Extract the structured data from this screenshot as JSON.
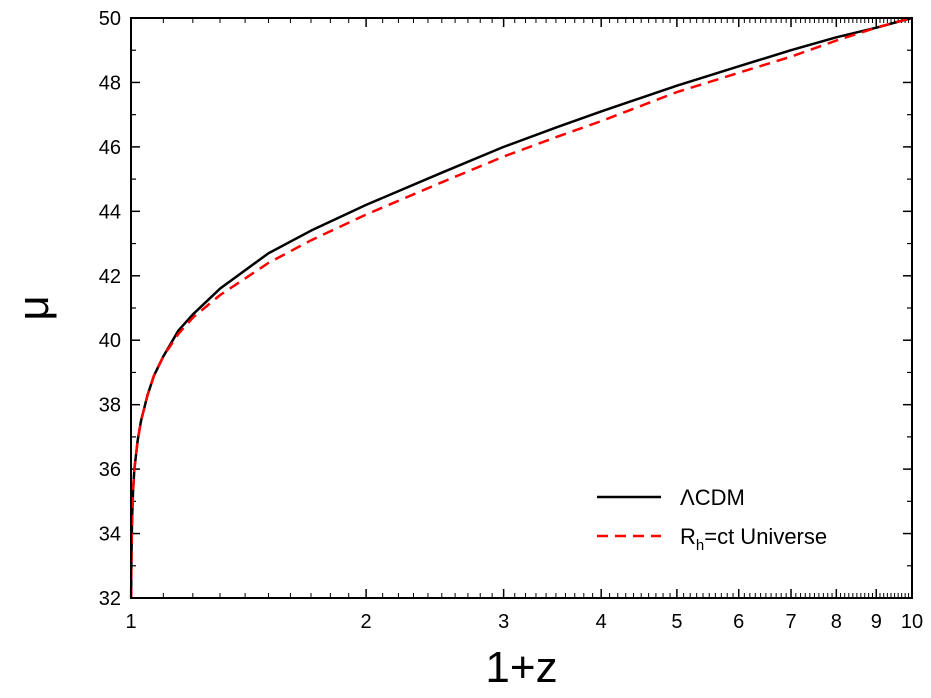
{
  "chart_data": {
    "type": "line",
    "xlabel": "1+z",
    "ylabel": "μ",
    "xscale": "log",
    "xlim": [
      1,
      10
    ],
    "ylim": [
      32,
      50
    ],
    "xticks": [
      1,
      2,
      3,
      4,
      5,
      6,
      7,
      8,
      9,
      10
    ],
    "xtick_labels": [
      "1",
      "2",
      "3",
      "4",
      "5",
      "6",
      "7",
      "8",
      "9",
      "10"
    ],
    "yticks": [
      32,
      34,
      36,
      38,
      40,
      42,
      44,
      46,
      48,
      50
    ],
    "ytick_labels": [
      "32",
      "34",
      "36",
      "38",
      "40",
      "42",
      "44",
      "46",
      "48",
      "50"
    ],
    "grid": false,
    "legend_position": "bottom-right",
    "series": [
      {
        "name": "ΛCDM",
        "color": "#000000",
        "dash": "solid",
        "x": [
          1.0005,
          1.001,
          1.003,
          1.006,
          1.01,
          1.02,
          1.03,
          1.05,
          1.07,
          1.1,
          1.15,
          1.2,
          1.3,
          1.5,
          1.7,
          2.0,
          2.5,
          3.0,
          3.5,
          4.0,
          5.0,
          6.0,
          7.0,
          8.0,
          9.0,
          10.0
        ],
        "y": [
          32.0,
          33.0,
          34.4,
          35.3,
          36.0,
          36.9,
          37.5,
          38.3,
          38.9,
          39.5,
          40.3,
          40.8,
          41.6,
          42.7,
          43.4,
          44.2,
          45.2,
          46.0,
          46.6,
          47.1,
          47.9,
          48.5,
          49.0,
          49.4,
          49.7,
          50.0
        ]
      },
      {
        "name": "R_h=ct Universe",
        "label_main": "R",
        "label_sub": "h",
        "label_rest": "=ct Universe",
        "color": "#ff0000",
        "dash": "dashed",
        "x": [
          1.0005,
          1.001,
          1.003,
          1.006,
          1.01,
          1.02,
          1.03,
          1.05,
          1.07,
          1.1,
          1.15,
          1.2,
          1.3,
          1.5,
          1.7,
          2.0,
          2.5,
          3.0,
          3.5,
          4.0,
          5.0,
          6.0,
          7.0,
          8.0,
          9.0,
          10.0
        ],
        "y": [
          32.0,
          33.0,
          34.4,
          35.3,
          36.0,
          36.9,
          37.5,
          38.3,
          38.9,
          39.5,
          40.2,
          40.7,
          41.4,
          42.4,
          43.1,
          43.9,
          44.9,
          45.7,
          46.3,
          46.8,
          47.7,
          48.3,
          48.8,
          49.3,
          49.7,
          50.0
        ]
      }
    ]
  }
}
